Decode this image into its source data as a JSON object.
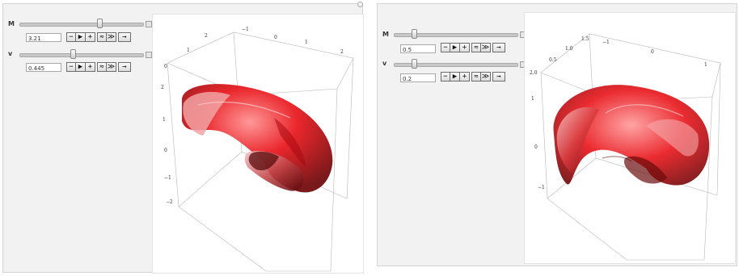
{
  "left_panel": {
    "controls": [
      {
        "label": "M",
        "value": "3.21",
        "slider_fraction": 0.66
      },
      {
        "label": "v",
        "value": "0.445",
        "slider_fraction": 0.44
      }
    ],
    "buttons": {
      "minus": "−",
      "play": "▶",
      "plus": "+",
      "faster": "≈",
      "slower": "≫",
      "step": "→"
    },
    "axis_ticks": {
      "top": [
        "2",
        "−1",
        "0",
        "1",
        "2"
      ],
      "left_top": [
        "1",
        "2"
      ],
      "vertical": [
        "2",
        "1",
        "0",
        "−1",
        "−2"
      ],
      "corner": "0"
    }
  },
  "right_panel": {
    "controls": [
      {
        "label": "M",
        "value": "0.5",
        "slider_fraction": 0.15
      },
      {
        "label": "v",
        "value": "0.2",
        "slider_fraction": 0.15
      }
    ],
    "buttons": {
      "minus": "−",
      "play": "▶",
      "plus": "+",
      "faster": "≈",
      "slower": "≫",
      "step": "→"
    },
    "axis_ticks": {
      "top": [
        "1.5",
        "−1",
        "0",
        "1"
      ],
      "left_top": [
        "0.5",
        "1.0"
      ],
      "vertical": [
        "1",
        "0",
        "−1"
      ],
      "corner": "2.0"
    }
  },
  "colors": {
    "surface": "#e8141a",
    "surface_dark": "#7a0a0c",
    "surface_light": "#f7b6b6"
  }
}
